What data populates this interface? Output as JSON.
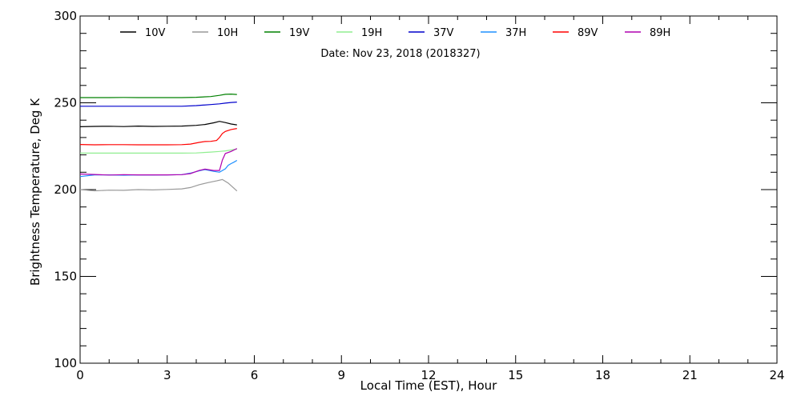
{
  "chart_data": {
    "type": "line",
    "title": "Date: Nov 23, 2018 (2018327)",
    "xlabel": "Local Time (EST), Hour",
    "ylabel": "Brightness Temperature, Deg K",
    "xlim": [
      0,
      24
    ],
    "ylim": [
      100,
      300
    ],
    "x_ticks": [
      "0",
      "3",
      "6",
      "9",
      "12",
      "15",
      "18",
      "21",
      "24"
    ],
    "y_ticks": [
      "100",
      "150",
      "200",
      "250",
      "300"
    ],
    "legend_placement": "top",
    "grid": false,
    "series": [
      {
        "name": "10V",
        "color": "#000000",
        "x": [
          0,
          0.5,
          1,
          1.5,
          2,
          2.5,
          3,
          3.5,
          4,
          4.3,
          4.6,
          4.8,
          5.0,
          5.2,
          5.4
        ],
        "y": [
          236.2,
          236.4,
          236.5,
          236.3,
          236.6,
          236.4,
          236.5,
          236.6,
          237.0,
          237.5,
          238.5,
          239.3,
          238.6,
          237.8,
          237.3
        ]
      },
      {
        "name": "10H",
        "color": "#999999",
        "x": [
          0,
          0.5,
          1,
          1.5,
          2,
          2.5,
          3,
          3.5,
          3.8,
          4.1,
          4.4,
          4.7,
          4.9,
          5.1,
          5.3,
          5.4
        ],
        "y": [
          200.0,
          199.3,
          199.7,
          199.6,
          200.0,
          199.8,
          200.1,
          200.4,
          201.2,
          202.8,
          204.0,
          205.0,
          205.8,
          203.8,
          200.8,
          199.2
        ]
      },
      {
        "name": "19V",
        "color": "#008000",
        "x": [
          0,
          0.5,
          1,
          1.5,
          2,
          2.5,
          3,
          3.5,
          4,
          4.5,
          4.8,
          5.0,
          5.2,
          5.4
        ],
        "y": [
          253.0,
          253.0,
          253.0,
          253.1,
          253.0,
          253.0,
          253.0,
          253.0,
          253.2,
          253.6,
          254.3,
          254.9,
          255.0,
          254.8
        ]
      },
      {
        "name": "19H",
        "color": "#90ee90",
        "x": [
          0,
          0.5,
          1,
          1.5,
          2,
          2.5,
          3,
          3.5,
          4,
          4.5,
          4.8,
          5.0,
          5.2,
          5.4
        ],
        "y": [
          221.0,
          221.0,
          221.0,
          221.0,
          221.0,
          221.0,
          221.0,
          221.0,
          221.1,
          221.6,
          222.0,
          222.3,
          222.8,
          223.3
        ]
      },
      {
        "name": "37V",
        "color": "#0000cc",
        "x": [
          0,
          0.5,
          1,
          1.5,
          2,
          2.5,
          3,
          3.5,
          4,
          4.5,
          4.8,
          5.0,
          5.2,
          5.4
        ],
        "y": [
          248.0,
          248.0,
          248.0,
          248.0,
          248.0,
          248.0,
          248.0,
          248.0,
          248.4,
          249.0,
          249.4,
          249.8,
          250.2,
          250.4
        ]
      },
      {
        "name": "37H",
        "color": "#1e90ff",
        "x": [
          0,
          0.5,
          1,
          1.5,
          2,
          2.5,
          3,
          3.5,
          3.8,
          4.1,
          4.3,
          4.6,
          4.8,
          5.0,
          5.1,
          5.2,
          5.3,
          5.4
        ],
        "y": [
          207.5,
          208.5,
          208.5,
          208.3,
          208.5,
          208.4,
          208.5,
          208.6,
          209.5,
          210.8,
          211.5,
          210.5,
          210.0,
          212.0,
          214.0,
          215.0,
          215.8,
          216.8
        ]
      },
      {
        "name": "89V",
        "color": "#ff0000",
        "x": [
          0,
          0.5,
          1,
          1.5,
          2,
          2.5,
          3,
          3.5,
          3.8,
          4.1,
          4.3,
          4.5,
          4.7,
          4.8,
          4.9,
          5.0,
          5.2,
          5.4
        ],
        "y": [
          226.0,
          225.8,
          225.9,
          225.9,
          225.8,
          225.8,
          225.8,
          225.9,
          226.2,
          227.2,
          227.7,
          227.8,
          228.3,
          230.0,
          232.3,
          233.5,
          234.6,
          235.2
        ]
      },
      {
        "name": "89H",
        "color": "#b000b0",
        "x": [
          0,
          0.5,
          1,
          1.5,
          2,
          2.5,
          3,
          3.5,
          3.8,
          4.1,
          4.3,
          4.6,
          4.8,
          4.9,
          5.0,
          5.2,
          5.4
        ],
        "y": [
          209.0,
          208.7,
          208.4,
          208.6,
          208.5,
          208.5,
          208.5,
          208.6,
          209.2,
          211.0,
          211.8,
          211.0,
          211.0,
          217.0,
          220.8,
          222.0,
          223.7
        ]
      }
    ]
  }
}
